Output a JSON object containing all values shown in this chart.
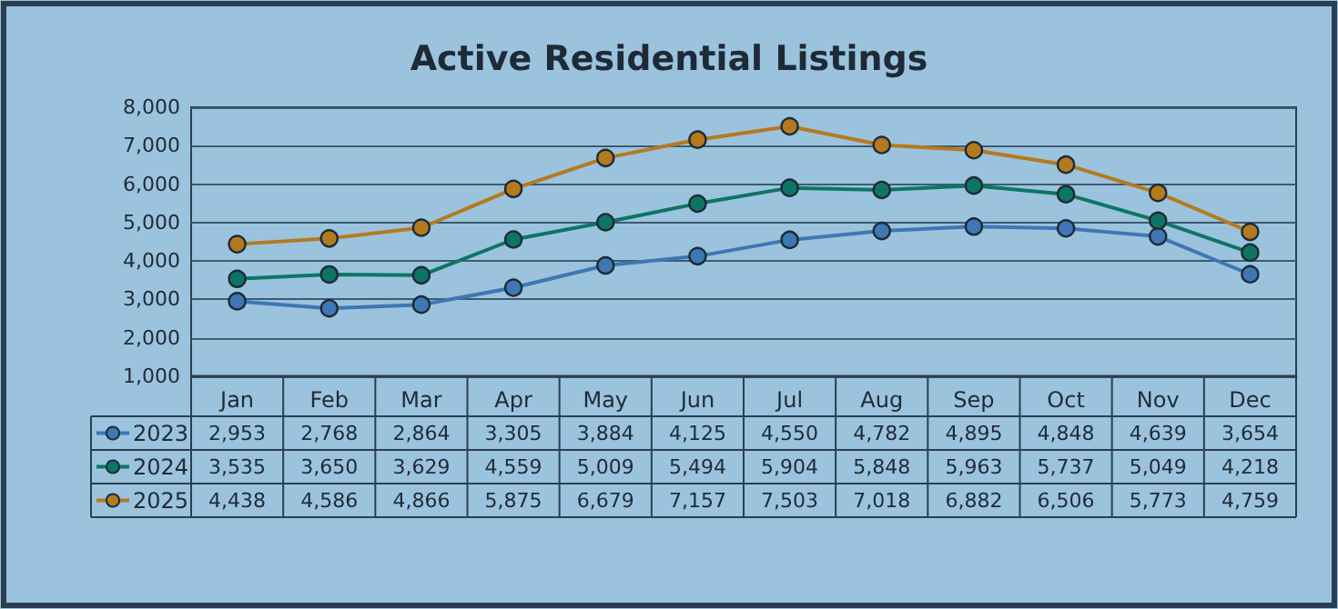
{
  "chart_data": {
    "type": "line",
    "title": "Active Residential Listings",
    "categories": [
      "Jan",
      "Feb",
      "Mar",
      "Apr",
      "May",
      "Jun",
      "Jul",
      "Aug",
      "Sep",
      "Oct",
      "Nov",
      "Dec"
    ],
    "series": [
      {
        "name": "2023",
        "color": "#3f76b4",
        "values": [
          2953,
          2768,
          2864,
          3305,
          3884,
          4125,
          4550,
          4782,
          4895,
          4848,
          4639,
          3654
        ],
        "value_labels": [
          "2,953",
          "2,768",
          "2,864",
          "3,305",
          "3,884",
          "4,125",
          "4,550",
          "4,782",
          "4,895",
          "4,848",
          "4,639",
          "3,654"
        ]
      },
      {
        "name": "2024",
        "color": "#0e7464",
        "values": [
          3535,
          3650,
          3629,
          4559,
          5009,
          5494,
          5904,
          5848,
          5963,
          5737,
          5049,
          4218
        ],
        "value_labels": [
          "3,535",
          "3,650",
          "3,629",
          "4,559",
          "5,009",
          "5,494",
          "5,904",
          "5,848",
          "5,963",
          "5,737",
          "5,049",
          "4,218"
        ]
      },
      {
        "name": "2025",
        "color": "#b47a1e",
        "values": [
          4438,
          4586,
          4866,
          5875,
          6679,
          7157,
          7503,
          7018,
          6882,
          6506,
          5773,
          4759
        ],
        "value_labels": [
          "4,438",
          "4,586",
          "4,866",
          "5,875",
          "6,679",
          "7,157",
          "7,503",
          "7,018",
          "6,882",
          "6,506",
          "5,773",
          "4,759"
        ]
      }
    ],
    "ylim": [
      1000,
      8000
    ],
    "yticks": [
      {
        "value": 1000,
        "label": "1,000"
      },
      {
        "value": 2000,
        "label": "2,000"
      },
      {
        "value": 3000,
        "label": "3,000"
      },
      {
        "value": 4000,
        "label": "4,000"
      },
      {
        "value": 5000,
        "label": "5,000"
      },
      {
        "value": 6000,
        "label": "6,000"
      },
      {
        "value": 7000,
        "label": "7,000"
      },
      {
        "value": 8000,
        "label": "8,000"
      }
    ],
    "grid": "y",
    "legend": "bottom left",
    "marker": "circle",
    "line_style": "solid"
  }
}
